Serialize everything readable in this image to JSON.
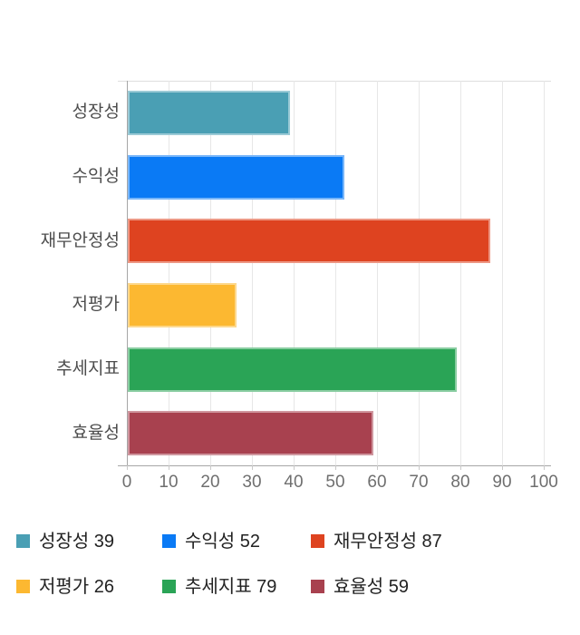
{
  "chart_data": {
    "type": "bar",
    "orientation": "horizontal",
    "title": "",
    "categories": [
      "성장성",
      "수익성",
      "재무안정성",
      "저평가",
      "추세지표",
      "효율성"
    ],
    "values": [
      39,
      52,
      87,
      26,
      79,
      59
    ],
    "colors": [
      "#4a9fb4",
      "#0a7af5",
      "#de4320",
      "#fcb831",
      "#2aa456",
      "#a8414f"
    ],
    "xlim": [
      0,
      100
    ],
    "x_ticks": [
      0,
      10,
      20,
      30,
      40,
      50,
      60,
      70,
      80,
      90,
      100
    ],
    "grid": true,
    "legend_position": "bottom",
    "legend_entries": [
      {
        "label": "성장성",
        "value": 39,
        "color": "#4a9fb4"
      },
      {
        "label": "수익성",
        "value": 52,
        "color": "#0a7af5"
      },
      {
        "label": "재무안정성",
        "value": 87,
        "color": "#de4320"
      },
      {
        "label": "저평가",
        "value": 26,
        "color": "#fcb831"
      },
      {
        "label": "추세지표",
        "value": 79,
        "color": "#2aa456"
      },
      {
        "label": "효율성",
        "value": 59,
        "color": "#a8414f"
      }
    ]
  }
}
